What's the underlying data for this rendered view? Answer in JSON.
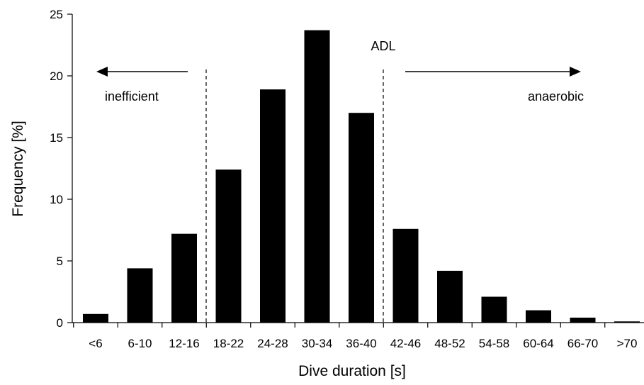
{
  "chart_data": {
    "type": "bar",
    "xlabel": "Dive duration [s]",
    "ylabel": "Frequency [%]",
    "ylim": [
      0,
      25
    ],
    "yticks": [
      "0",
      "5",
      "10",
      "15",
      "20",
      "25"
    ],
    "categories": [
      "<6",
      "6-10",
      "12-16",
      "18-22",
      "24-28",
      "30-34",
      "36-40",
      "42-46",
      "48-52",
      "54-58",
      "60-64",
      "66-70",
      ">70"
    ],
    "values": [
      0.7,
      4.4,
      7.2,
      12.4,
      18.9,
      23.7,
      17.0,
      7.6,
      4.2,
      2.1,
      1.0,
      0.4,
      0.1
    ],
    "bar_color": "#000000",
    "grid": false,
    "legend": "none",
    "annotations": {
      "adl": "ADL",
      "left_region": "inefficient",
      "right_region": "anaerobic"
    }
  }
}
